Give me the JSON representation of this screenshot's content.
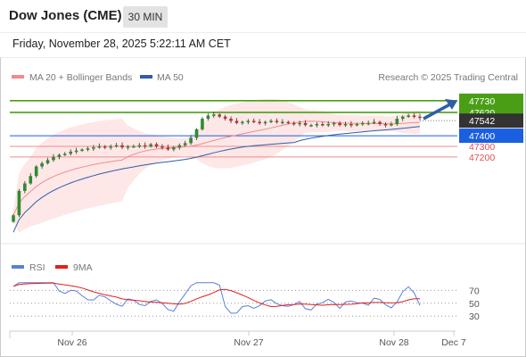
{
  "header": {
    "title": "Dow Jones (CME)",
    "timeframe": "30 MIN",
    "datetime": "Friday, November 28, 2025 5:22:11 AM CET"
  },
  "chart_data": {
    "type": "candlestick",
    "legend": [
      {
        "label": "MA 20 + Bollinger Bands",
        "color": "#f08c8c"
      },
      {
        "label": "MA 50",
        "color": "#2f5ea8"
      }
    ],
    "credit": "Research © 2025 Trading Central",
    "price_levels": [
      {
        "value": 47730,
        "label": "47730",
        "kind": "resistance",
        "color": "#4a9e16"
      },
      {
        "value": 47620,
        "label": "47620",
        "kind": "resistance",
        "color": "#4a9e16"
      },
      {
        "value": 47542,
        "label": "47542",
        "kind": "last_price",
        "color": "#333333"
      },
      {
        "value": 47400,
        "label": "47400",
        "kind": "pivot",
        "color": "#1a5fe0"
      },
      {
        "value": 47300,
        "label": "47300",
        "kind": "support",
        "color": "#f08c8c"
      },
      {
        "value": 47200,
        "label": "47200",
        "kind": "support",
        "color": "#f08c8c"
      }
    ],
    "x_labels": [
      "Nov 26",
      "Nov 27",
      "Nov 28",
      "Dec 7"
    ],
    "price_ylim": [
      46450,
      47880
    ],
    "candle_closes": [
      46650,
      46880,
      46950,
      47020,
      47110,
      47140,
      47170,
      47200,
      47220,
      47230,
      47250,
      47260,
      47270,
      47280,
      47290,
      47300,
      47290,
      47300,
      47310,
      47290,
      47300,
      47300,
      47310,
      47300,
      47320,
      47300,
      47290,
      47270,
      47290,
      47310,
      47330,
      47380,
      47460,
      47560,
      47590,
      47600,
      47580,
      47560,
      47540,
      47520,
      47530,
      47540,
      47530,
      47520,
      47530,
      47540,
      47530,
      47530,
      47520,
      47510,
      47520,
      47500,
      47500,
      47510,
      47500,
      47510,
      47520,
      47500,
      47510,
      47500,
      47510,
      47520,
      47520,
      47530,
      47510,
      47500,
      47510,
      47560,
      47580,
      47590,
      47580,
      47570
    ],
    "rsi": {
      "legend": [
        {
          "label": "RSI",
          "color": "#5b7fd9"
        },
        {
          "label": "9MA",
          "color": "#e02020"
        }
      ],
      "levels": [
        "70",
        "50",
        "30"
      ],
      "ylim": [
        15,
        90
      ]
    },
    "forecast": {
      "from": 47560,
      "to": 47730
    }
  }
}
